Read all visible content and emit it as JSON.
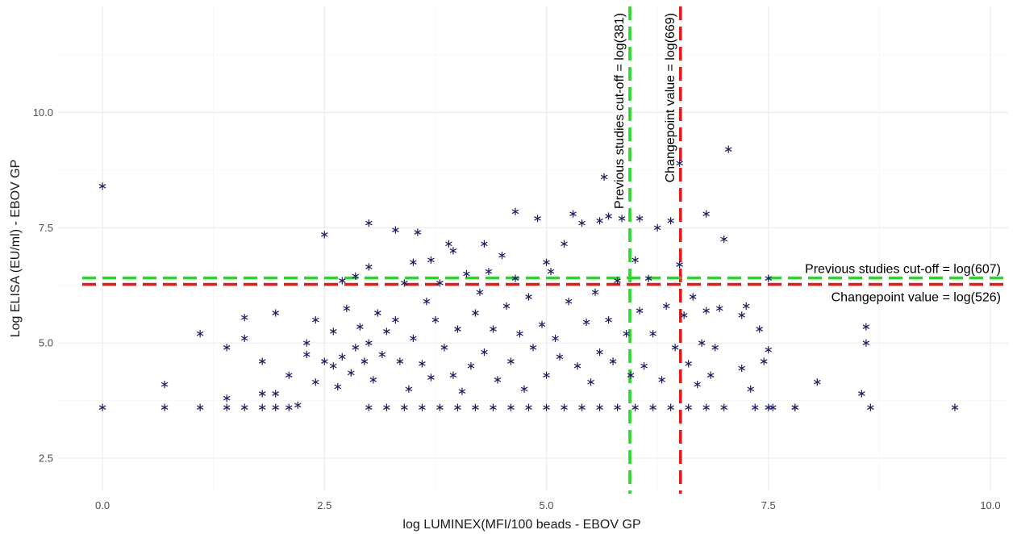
{
  "chart_data": {
    "type": "scatter",
    "xlabel": "log LUMINEX(MFI/100 beads - EBOV GP",
    "ylabel": "Log ELISA (EU/ml) - EBOV GP",
    "xlim": [
      -0.5,
      10.2
    ],
    "ylim": [
      1.8,
      12.3
    ],
    "x_ticks": [
      0.0,
      2.5,
      5.0,
      7.5,
      10.0
    ],
    "x_tick_labels": [
      "0.0",
      "2.5",
      "5.0",
      "7.5",
      "10.0"
    ],
    "y_ticks": [
      2.5,
      5.0,
      7.5,
      10.0
    ],
    "y_tick_labels": [
      "2.5",
      "5.0",
      "7.5",
      "10.0"
    ],
    "grid": true,
    "marker": "asterisk",
    "marker_color": "#1a1a5e",
    "reference_lines": [
      {
        "orientation": "vertical",
        "value": 5.94,
        "color": "#22dd22",
        "style": "dashed",
        "label": "Previous studies cut-off = log(381)"
      },
      {
        "orientation": "vertical",
        "value": 6.51,
        "color": "#dd1c1c",
        "style": "dashed",
        "label": "Changepoint value = log(669)"
      },
      {
        "orientation": "horizontal",
        "value": 6.41,
        "color": "#22dd22",
        "style": "dashed",
        "label": "Previous studies cut-off = log(607)"
      },
      {
        "orientation": "horizontal",
        "value": 6.27,
        "color": "#dd1c1c",
        "style": "dashed",
        "label": "Changepoint value = log(526)"
      }
    ],
    "points": [
      [
        0.0,
        3.6
      ],
      [
        0.0,
        8.4
      ],
      [
        0.7,
        4.1
      ],
      [
        0.7,
        3.6
      ],
      [
        1.1,
        5.2
      ],
      [
        1.1,
        3.6
      ],
      [
        1.4,
        4.9
      ],
      [
        1.4,
        3.8
      ],
      [
        1.4,
        3.6
      ],
      [
        1.6,
        5.55
      ],
      [
        1.6,
        5.1
      ],
      [
        1.6,
        3.6
      ],
      [
        1.8,
        4.6
      ],
      [
        1.8,
        3.9
      ],
      [
        1.8,
        3.6
      ],
      [
        1.95,
        5.65
      ],
      [
        1.95,
        3.9
      ],
      [
        1.95,
        3.6
      ],
      [
        2.1,
        4.3
      ],
      [
        2.1,
        3.6
      ],
      [
        2.2,
        3.65
      ],
      [
        2.3,
        5.0
      ],
      [
        2.3,
        4.75
      ],
      [
        2.4,
        5.5
      ],
      [
        2.4,
        4.15
      ],
      [
        2.5,
        7.35
      ],
      [
        2.5,
        4.6
      ],
      [
        2.6,
        5.25
      ],
      [
        2.6,
        4.5
      ],
      [
        2.65,
        4.05
      ],
      [
        2.7,
        6.35
      ],
      [
        2.7,
        4.7
      ],
      [
        2.75,
        5.75
      ],
      [
        2.8,
        4.35
      ],
      [
        2.85,
        6.45
      ],
      [
        2.85,
        4.9
      ],
      [
        2.9,
        5.35
      ],
      [
        2.95,
        4.6
      ],
      [
        3.0,
        7.6
      ],
      [
        3.0,
        6.65
      ],
      [
        3.0,
        5.0
      ],
      [
        3.05,
        4.2
      ],
      [
        3.1,
        5.65
      ],
      [
        3.15,
        4.75
      ],
      [
        3.2,
        5.25
      ],
      [
        3.3,
        7.45
      ],
      [
        3.3,
        5.5
      ],
      [
        3.35,
        4.6
      ],
      [
        3.4,
        6.3
      ],
      [
        3.45,
        4.0
      ],
      [
        3.5,
        6.75
      ],
      [
        3.5,
        5.1
      ],
      [
        3.55,
        7.4
      ],
      [
        3.6,
        4.55
      ],
      [
        3.65,
        5.9
      ],
      [
        3.7,
        6.8
      ],
      [
        3.7,
        4.25
      ],
      [
        3.75,
        5.5
      ],
      [
        3.8,
        6.3
      ],
      [
        3.85,
        4.9
      ],
      [
        3.9,
        7.15
      ],
      [
        3.95,
        7.0
      ],
      [
        3.95,
        4.3
      ],
      [
        4.0,
        5.3
      ],
      [
        4.05,
        3.95
      ],
      [
        4.1,
        6.5
      ],
      [
        4.15,
        4.5
      ],
      [
        4.2,
        5.65
      ],
      [
        4.25,
        6.1
      ],
      [
        4.3,
        7.15
      ],
      [
        4.3,
        4.8
      ],
      [
        4.35,
        6.55
      ],
      [
        4.4,
        5.3
      ],
      [
        4.45,
        4.2
      ],
      [
        4.5,
        6.9
      ],
      [
        4.55,
        5.8
      ],
      [
        4.6,
        4.6
      ],
      [
        4.65,
        7.85
      ],
      [
        4.65,
        6.4
      ],
      [
        4.7,
        5.2
      ],
      [
        4.75,
        4.0
      ],
      [
        4.8,
        6.0
      ],
      [
        4.85,
        4.9
      ],
      [
        4.9,
        7.7
      ],
      [
        4.95,
        5.4
      ],
      [
        5.0,
        6.75
      ],
      [
        5.0,
        4.3
      ],
      [
        5.05,
        6.55
      ],
      [
        5.1,
        5.1
      ],
      [
        5.15,
        4.7
      ],
      [
        5.2,
        7.15
      ],
      [
        5.25,
        5.9
      ],
      [
        5.3,
        7.8
      ],
      [
        5.35,
        4.5
      ],
      [
        5.4,
        7.6
      ],
      [
        5.45,
        5.45
      ],
      [
        5.5,
        4.15
      ],
      [
        5.55,
        6.1
      ],
      [
        5.6,
        7.65
      ],
      [
        5.6,
        4.8
      ],
      [
        5.65,
        8.6
      ],
      [
        5.7,
        7.75
      ],
      [
        5.7,
        5.5
      ],
      [
        5.75,
        4.6
      ],
      [
        5.8,
        6.35
      ],
      [
        5.85,
        7.7
      ],
      [
        5.9,
        5.2
      ],
      [
        5.95,
        4.3
      ],
      [
        6.0,
        6.8
      ],
      [
        6.05,
        7.7
      ],
      [
        6.05,
        5.7
      ],
      [
        6.1,
        4.5
      ],
      [
        6.15,
        6.4
      ],
      [
        6.2,
        5.2
      ],
      [
        6.25,
        7.5
      ],
      [
        6.3,
        4.2
      ],
      [
        6.35,
        5.8
      ],
      [
        6.4,
        7.65
      ],
      [
        6.45,
        4.9
      ],
      [
        6.5,
        8.9
      ],
      [
        6.5,
        6.7
      ],
      [
        6.55,
        5.6
      ],
      [
        6.6,
        4.55
      ],
      [
        6.65,
        6.0
      ],
      [
        6.7,
        4.1
      ],
      [
        6.75,
        5.0
      ],
      [
        6.8,
        7.8
      ],
      [
        6.8,
        5.7
      ],
      [
        6.85,
        4.3
      ],
      [
        6.9,
        4.9
      ],
      [
        6.95,
        5.75
      ],
      [
        7.0,
        7.25
      ],
      [
        7.05,
        9.2
      ],
      [
        7.2,
        5.6
      ],
      [
        7.2,
        4.45
      ],
      [
        7.25,
        5.8
      ],
      [
        7.3,
        4.0
      ],
      [
        7.4,
        5.3
      ],
      [
        7.5,
        6.4
      ],
      [
        7.5,
        4.85
      ],
      [
        7.45,
        4.6
      ],
      [
        8.05,
        4.15
      ],
      [
        8.55,
        3.9
      ],
      [
        8.6,
        5.35
      ],
      [
        8.6,
        5.0
      ],
      [
        3.0,
        3.6
      ],
      [
        3.2,
        3.6
      ],
      [
        3.4,
        3.6
      ],
      [
        3.6,
        3.6
      ],
      [
        3.8,
        3.6
      ],
      [
        4.0,
        3.6
      ],
      [
        4.2,
        3.6
      ],
      [
        4.4,
        3.6
      ],
      [
        4.6,
        3.6
      ],
      [
        4.8,
        3.6
      ],
      [
        5.0,
        3.6
      ],
      [
        5.2,
        3.6
      ],
      [
        5.4,
        3.6
      ],
      [
        5.6,
        3.6
      ],
      [
        5.8,
        3.6
      ],
      [
        6.0,
        3.6
      ],
      [
        6.2,
        3.6
      ],
      [
        6.4,
        3.6
      ],
      [
        6.6,
        3.6
      ],
      [
        6.8,
        3.6
      ],
      [
        7.0,
        3.6
      ],
      [
        7.35,
        3.6
      ],
      [
        7.5,
        3.6
      ],
      [
        7.55,
        3.6
      ],
      [
        7.8,
        3.6
      ],
      [
        7.8,
        3.6
      ],
      [
        8.65,
        3.6
      ],
      [
        9.6,
        3.6
      ]
    ]
  }
}
